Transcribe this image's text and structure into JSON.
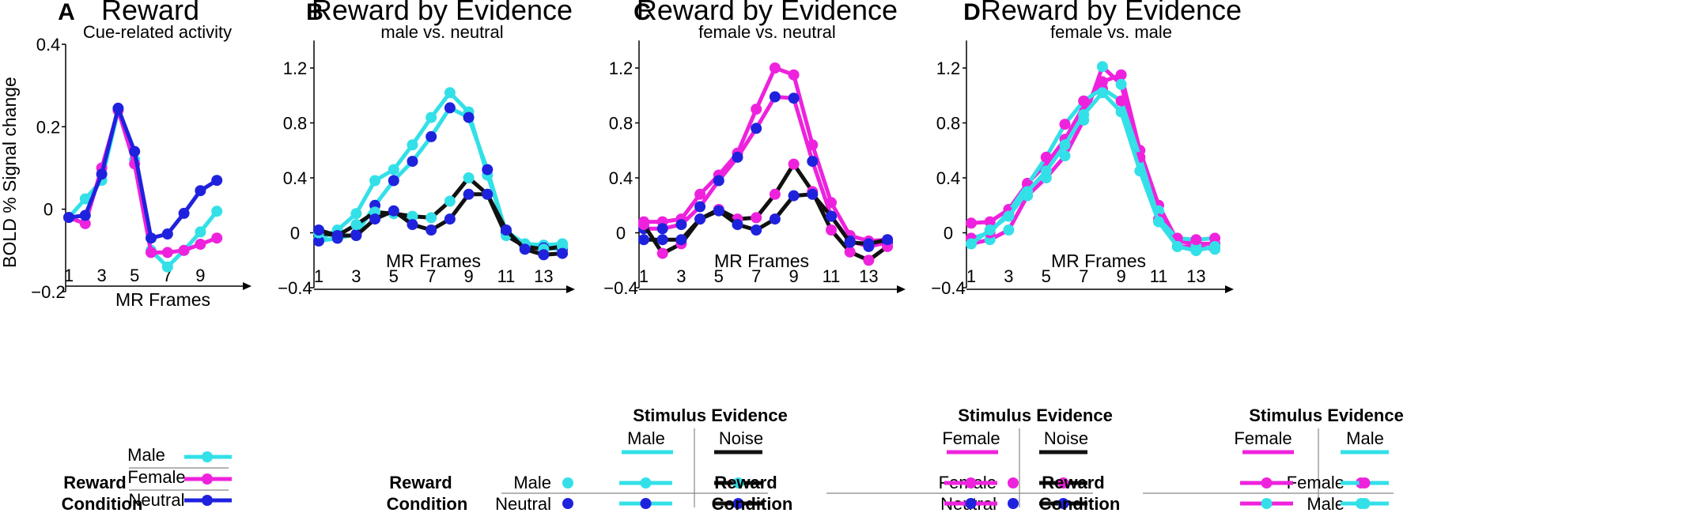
{
  "colors": {
    "cyan": "#33e0e8",
    "magenta": "#ee22dd",
    "blue": "#1f22dd",
    "black": "#111111"
  },
  "chart_data": [
    {
      "type": "line",
      "panel": "A",
      "title": "Reward",
      "subtitle": "Cue-related activity",
      "ylabel": "BOLD % Signal change",
      "xlabel": "MR Frames",
      "ylim": [
        -0.2,
        0.4
      ],
      "y_ticks": [
        "0.4",
        "0.2",
        "0",
        "−0.2"
      ],
      "x_ticks": [
        "1",
        "3",
        "5",
        "7",
        "9"
      ],
      "x": [
        1,
        2,
        3,
        4,
        5,
        6,
        7,
        8,
        9,
        10
      ],
      "series": [
        {
          "name": "Male",
          "color": "cyan",
          "values": [
            -0.02,
            0.025,
            0.07,
            0.24,
            0.12,
            -0.1,
            -0.14,
            -0.1,
            -0.055,
            -0.005
          ]
        },
        {
          "name": "Female",
          "color": "magenta",
          "values": [
            -0.02,
            -0.035,
            0.1,
            0.24,
            0.11,
            -0.105,
            -0.105,
            -0.1,
            -0.085,
            -0.07
          ]
        },
        {
          "name": "Neutral",
          "color": "blue",
          "values": [
            -0.02,
            -0.015,
            0.085,
            0.245,
            0.14,
            -0.07,
            -0.06,
            -0.01,
            0.045,
            0.07
          ]
        }
      ],
      "legend": {
        "title_line1": "Reward",
        "title_line2": "Condition",
        "entries": [
          "Male",
          "Female",
          "Neutral"
        ]
      }
    },
    {
      "type": "line",
      "panel": "B",
      "title": "Reward by Evidence",
      "subtitle": "male vs. neutral",
      "xlabel": "MR Frames",
      "ylim": [
        -0.4,
        1.4
      ],
      "y_ticks": [
        "1.2",
        "0.8",
        "0.4",
        "0",
        "−0.4"
      ],
      "x_ticks": [
        "1",
        "3",
        "5",
        "7",
        "9",
        "11",
        "13"
      ],
      "x": [
        1,
        2,
        3,
        4,
        5,
        6,
        7,
        8,
        9,
        10,
        11,
        12,
        13,
        14
      ],
      "series": [
        {
          "name": "Male reward / Male evidence",
          "color": "cyan",
          "line": "cyan",
          "values": [
            -0.05,
            0.02,
            0.14,
            0.38,
            0.46,
            0.64,
            0.84,
            1.02,
            0.88,
            0.42,
            0.01,
            -0.08,
            -0.09,
            -0.08
          ]
        },
        {
          "name": "Neutral reward / Male evidence",
          "color": "blue",
          "line": "cyan",
          "values": [
            -0.06,
            -0.04,
            -0.01,
            0.2,
            0.38,
            0.52,
            0.7,
            0.91,
            0.84,
            0.46,
            0.0,
            -0.1,
            -0.11,
            -0.12
          ]
        },
        {
          "name": "Male reward / Noise evidence",
          "color": "cyan",
          "line": "black",
          "values": [
            0.0,
            -0.02,
            0.06,
            0.15,
            0.14,
            0.12,
            0.11,
            0.23,
            0.4,
            0.28,
            -0.02,
            -0.1,
            -0.12,
            -0.1
          ]
        },
        {
          "name": "Neutral reward / Noise evidence",
          "color": "blue",
          "line": "black",
          "values": [
            0.02,
            -0.02,
            -0.02,
            0.1,
            0.16,
            0.06,
            0.02,
            0.1,
            0.28,
            0.28,
            0.02,
            -0.12,
            -0.16,
            -0.15
          ]
        }
      ],
      "legend": {
        "title": "Stimulus Evidence",
        "columns": [
          "Male",
          "Noise"
        ],
        "row_title_line1": "Reward",
        "row_title_line2": "Condition",
        "rows": [
          "Male",
          "Neutral"
        ]
      }
    },
    {
      "type": "line",
      "panel": "C",
      "title": "Reward by Evidence",
      "subtitle": "female vs. neutral",
      "xlabel": "MR Frames",
      "ylim": [
        -0.4,
        1.4
      ],
      "y_ticks": [
        "1.2",
        "0.8",
        "0.4",
        "0",
        "−0.4"
      ],
      "x_ticks": [
        "1",
        "3",
        "5",
        "7",
        "9",
        "11",
        "13"
      ],
      "x": [
        1,
        2,
        3,
        4,
        5,
        6,
        7,
        8,
        9,
        10,
        11,
        12,
        13,
        14
      ],
      "series": [
        {
          "name": "Female reward / Female evidence",
          "color": "magenta",
          "line": "magenta",
          "values": [
            0.08,
            0.08,
            0.1,
            0.28,
            0.42,
            0.58,
            0.9,
            1.2,
            1.15,
            0.64,
            0.22,
            -0.02,
            -0.06,
            -0.05
          ]
        },
        {
          "name": "Neutral reward / Female evidence",
          "color": "blue",
          "line": "magenta",
          "values": [
            0.03,
            0.03,
            0.06,
            0.19,
            0.38,
            0.55,
            0.76,
            0.99,
            0.98,
            0.52,
            0.12,
            -0.06,
            -0.1,
            -0.07
          ]
        },
        {
          "name": "Female reward / Noise evidence",
          "color": "magenta",
          "line": "black",
          "values": [
            0.06,
            -0.15,
            -0.08,
            0.1,
            0.17,
            0.1,
            0.11,
            0.28,
            0.5,
            0.3,
            0.02,
            -0.14,
            -0.2,
            -0.1
          ]
        },
        {
          "name": "Neutral reward / Noise evidence",
          "color": "blue",
          "line": "black",
          "values": [
            -0.05,
            -0.05,
            -0.05,
            0.1,
            0.16,
            0.06,
            0.02,
            0.1,
            0.27,
            0.28,
            0.12,
            -0.07,
            -0.08,
            -0.05
          ]
        }
      ],
      "legend": {
        "title": "Stimulus Evidence",
        "columns": [
          "Female",
          "Noise"
        ],
        "row_title_line1": "Reward",
        "row_title_line2": "Condition",
        "rows": [
          "Female",
          "Neutral"
        ]
      }
    },
    {
      "type": "line",
      "panel": "D",
      "title": "Reward by Evidence",
      "subtitle": "female vs. male",
      "xlabel": "MR Frames",
      "ylim": [
        -0.4,
        1.4
      ],
      "y_ticks": [
        "1.2",
        "0.8",
        "0.4",
        "0",
        "−0.4"
      ],
      "x_ticks": [
        "1",
        "3",
        "5",
        "7",
        "9",
        "11",
        "13"
      ],
      "x": [
        1,
        2,
        3,
        4,
        5,
        6,
        7,
        8,
        9,
        10,
        11,
        12,
        13,
        14
      ],
      "series": [
        {
          "name": "Female reward / Female evidence",
          "color": "magenta",
          "line": "magenta",
          "values": [
            0.07,
            0.08,
            0.17,
            0.36,
            0.5,
            0.68,
            0.92,
            1.1,
            1.15,
            0.6,
            0.2,
            -0.06,
            -0.08,
            -0.08
          ]
        },
        {
          "name": "Male reward / Female evidence",
          "color": "cyan",
          "line": "magenta",
          "values": [
            -0.08,
            -0.05,
            0.02,
            0.27,
            0.4,
            0.56,
            0.82,
            1.21,
            1.08,
            0.55,
            0.16,
            -0.1,
            -0.1,
            -0.12
          ]
        },
        {
          "name": "Female reward / Male evidence",
          "color": "magenta",
          "line": "cyan",
          "values": [
            -0.04,
            0.0,
            0.15,
            0.35,
            0.55,
            0.79,
            0.96,
            1.05,
            0.96,
            0.55,
            0.1,
            -0.04,
            -0.05,
            -0.04
          ]
        },
        {
          "name": "Male reward / Male evidence",
          "color": "cyan",
          "line": "cyan",
          "values": [
            -0.08,
            0.02,
            0.12,
            0.3,
            0.45,
            0.64,
            0.86,
            1.02,
            0.88,
            0.45,
            0.08,
            -0.1,
            -0.13,
            -0.1
          ]
        }
      ],
      "legend": {
        "title": "Stimulus Evidence",
        "columns": [
          "Female",
          "Male"
        ],
        "row_title_line1": "Reward",
        "row_title_line2": "Condition",
        "rows": [
          "Female",
          "Male"
        ]
      }
    }
  ]
}
